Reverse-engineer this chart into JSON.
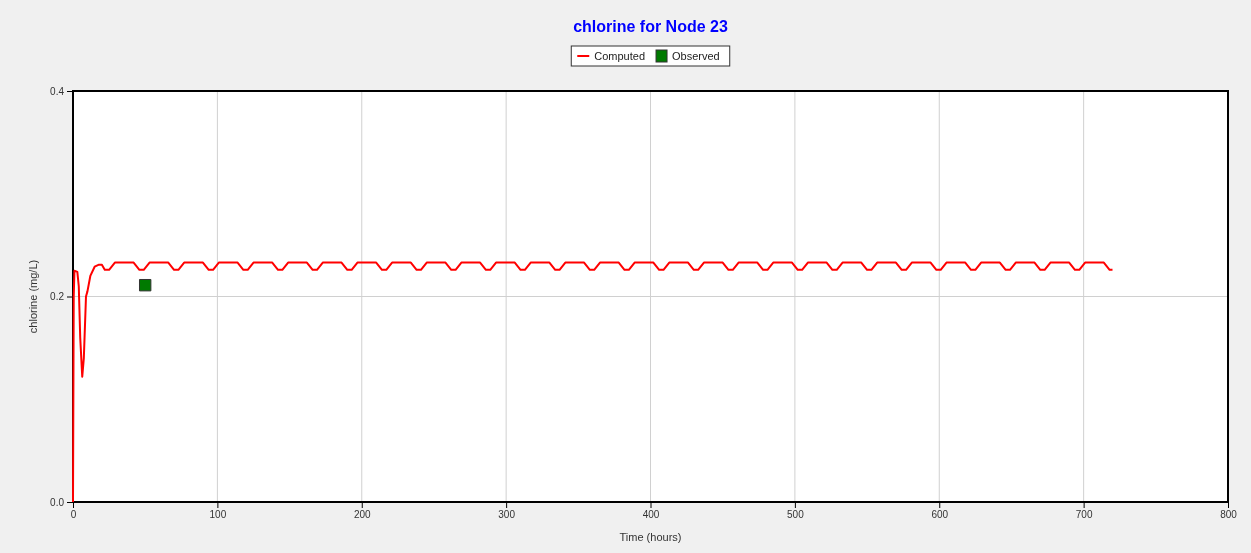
{
  "chart_data": {
    "type": "line",
    "title": "chlorine for Node 23",
    "xlabel": "Time (hours)",
    "ylabel": "chlorine (mg/L)",
    "xlim": [
      0,
      800
    ],
    "xticks": [
      0,
      100,
      200,
      300,
      400,
      500,
      600,
      700,
      800
    ],
    "ylim": [
      0,
      0.4
    ],
    "yticks": [
      {
        "value": 0,
        "label": "0.0"
      },
      0.2,
      0.4
    ],
    "grid": true,
    "legend": "top",
    "series": [
      {
        "name": "Computed",
        "color": "#ff0000",
        "marker": "none",
        "x": [
          0,
          0.5,
          1,
          3,
          4,
          5,
          6.4,
          7.5,
          9,
          10,
          12,
          15,
          18,
          20,
          22,
          25,
          29,
          42,
          46,
          49,
          53,
          66,
          70,
          73,
          77,
          90,
          94,
          97,
          101,
          114,
          118,
          121,
          125,
          138,
          142,
          145,
          149,
          162,
          166,
          169,
          173,
          186,
          190,
          193,
          197,
          210,
          214,
          217,
          221,
          234,
          238,
          241,
          245,
          258,
          262,
          265,
          269,
          282,
          286,
          289,
          293,
          306,
          310,
          313,
          317,
          330,
          334,
          337,
          341,
          354,
          358,
          361,
          365,
          378,
          382,
          385,
          389,
          402,
          406,
          409,
          413,
          426,
          430,
          433,
          437,
          450,
          454,
          457,
          461,
          474,
          478,
          481,
          485,
          498,
          502,
          505,
          509,
          522,
          526,
          529,
          533,
          546,
          550,
          553,
          557,
          570,
          574,
          577,
          581,
          594,
          598,
          601,
          605,
          618,
          622,
          625,
          629,
          642,
          646,
          649,
          653,
          666,
          670,
          673,
          677,
          690,
          694,
          697,
          701,
          714,
          718,
          720
        ],
        "values": [
          0,
          0.2,
          0.225,
          0.224,
          0.21,
          0.16,
          0.122,
          0.14,
          0.2,
          0.205,
          0.22,
          0.229,
          0.231,
          0.231,
          0.226,
          0.226,
          0.233,
          0.233,
          0.226,
          0.226,
          0.233,
          0.233,
          0.226,
          0.226,
          0.233,
          0.233,
          0.226,
          0.226,
          0.233,
          0.233,
          0.226,
          0.226,
          0.233,
          0.233,
          0.226,
          0.226,
          0.233,
          0.233,
          0.226,
          0.226,
          0.233,
          0.233,
          0.226,
          0.226,
          0.233,
          0.233,
          0.226,
          0.226,
          0.233,
          0.233,
          0.226,
          0.226,
          0.233,
          0.233,
          0.226,
          0.226,
          0.233,
          0.233,
          0.226,
          0.226,
          0.233,
          0.233,
          0.226,
          0.226,
          0.233,
          0.233,
          0.226,
          0.226,
          0.233,
          0.233,
          0.226,
          0.226,
          0.233,
          0.233,
          0.226,
          0.226,
          0.233,
          0.233,
          0.226,
          0.226,
          0.233,
          0.233,
          0.226,
          0.226,
          0.233,
          0.233,
          0.226,
          0.226,
          0.233,
          0.233,
          0.226,
          0.226,
          0.233,
          0.233,
          0.226,
          0.226,
          0.233,
          0.233,
          0.226,
          0.226,
          0.233,
          0.233,
          0.226,
          0.226,
          0.233,
          0.233,
          0.226,
          0.226,
          0.233,
          0.233,
          0.226,
          0.226,
          0.233,
          0.233,
          0.226,
          0.226,
          0.233,
          0.233,
          0.226,
          0.226,
          0.233,
          0.233,
          0.226,
          0.226,
          0.233,
          0.233,
          0.226,
          0.226,
          0.233,
          0.233,
          0.226,
          0.226
        ]
      },
      {
        "name": "Observed",
        "type": "scatter",
        "color": "#007a00",
        "marker": "square",
        "x": [
          50
        ],
        "values": [
          0.211
        ]
      }
    ]
  }
}
